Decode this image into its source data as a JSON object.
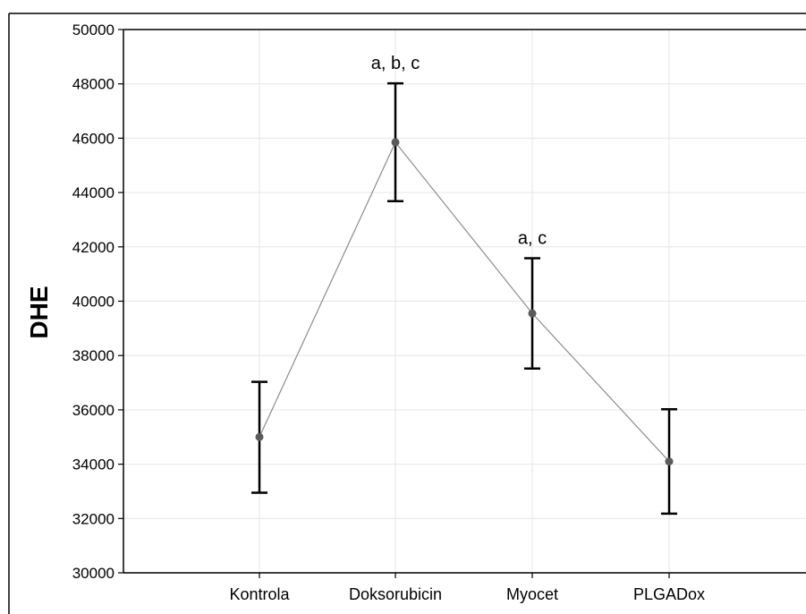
{
  "chart_data": {
    "type": "line",
    "title": "",
    "xlabel": "",
    "ylabel": "DHE",
    "categories": [
      "Kontrola",
      "Doksorubicin",
      "Myocet",
      "PLGADox"
    ],
    "values": [
      35000,
      45850,
      39550,
      34100
    ],
    "error_low": [
      32950,
      43680,
      37520,
      32180
    ],
    "error_high": [
      37030,
      48020,
      41580,
      36020
    ],
    "annotations": [
      "",
      "a, b, c",
      "a, c",
      ""
    ],
    "ylim": [
      30000,
      50000
    ],
    "yticks": [
      30000,
      32000,
      34000,
      36000,
      38000,
      40000,
      42000,
      44000,
      46000,
      48000,
      50000
    ],
    "grid": true,
    "colors": {
      "line": "#8c8c8c",
      "marker": "#5a5a5a",
      "error_bar": "#000000",
      "grid": "#e6e6e6"
    }
  }
}
